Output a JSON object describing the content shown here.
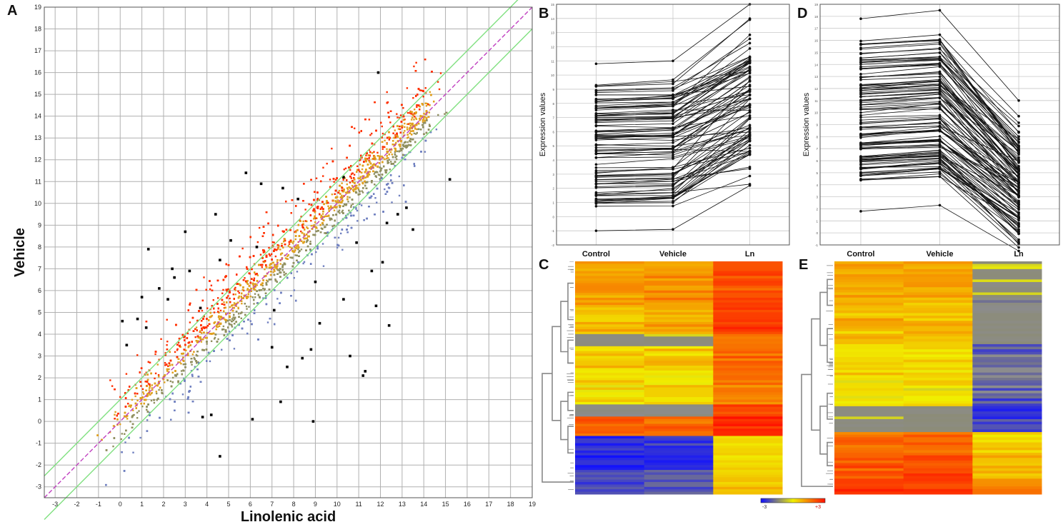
{
  "panels": {
    "a": "A",
    "b": "B",
    "c": "C",
    "d": "D",
    "e": "E"
  },
  "chart_data": [
    {
      "id": "A",
      "type": "scatter",
      "xlabel": "Linolenic acid",
      "ylabel": "Vehicle",
      "xlim": [
        -3.5,
        19
      ],
      "ylim": [
        -3.5,
        19
      ],
      "xticks": [
        -3,
        -2,
        -1,
        0,
        1,
        2,
        3,
        4,
        5,
        6,
        7,
        8,
        9,
        10,
        11,
        12,
        13,
        14,
        15,
        16,
        17,
        18,
        19
      ],
      "yticks": [
        -3,
        -2,
        -1,
        0,
        1,
        2,
        3,
        4,
        5,
        6,
        7,
        8,
        9,
        10,
        11,
        12,
        13,
        14,
        15,
        16,
        17,
        18,
        19
      ],
      "grid": true,
      "reference_lines": [
        {
          "name": "identity",
          "style": "dashed",
          "color": "#c040c0",
          "offset": 0
        },
        {
          "name": "fold-change upper",
          "color": "#80e080",
          "offset": 1
        },
        {
          "name": "fold-change lower",
          "color": "#80e080",
          "offset": -1
        }
      ],
      "series_colors": {
        "up": "#ff3000",
        "mid": "#e0a020",
        "neutral": "#909060",
        "down": "#7080c0",
        "outlier": "#000000"
      },
      "outliers": [
        [
          10.3,
          11.2
        ],
        [
          5.8,
          11.4
        ],
        [
          4.4,
          9.5
        ],
        [
          3.0,
          8.7
        ],
        [
          6.3,
          8.0
        ],
        [
          1.3,
          7.9
        ],
        [
          2.4,
          7.0
        ],
        [
          3.2,
          6.9
        ],
        [
          1.8,
          6.1
        ],
        [
          1.0,
          5.7
        ],
        [
          0.8,
          4.7
        ],
        [
          0.1,
          4.6
        ],
        [
          1.2,
          4.3
        ],
        [
          0.3,
          3.5
        ],
        [
          2.2,
          5.6
        ],
        [
          3.7,
          5.2
        ],
        [
          4.6,
          7.4
        ],
        [
          5.1,
          8.3
        ],
        [
          7.5,
          10.7
        ],
        [
          8.2,
          10.2
        ],
        [
          6.5,
          10.9
        ],
        [
          11.9,
          16.0
        ],
        [
          15.2,
          11.1
        ],
        [
          12.3,
          9.1
        ],
        [
          13.5,
          8.8
        ],
        [
          11.6,
          6.9
        ],
        [
          12.1,
          7.3
        ],
        [
          11.3,
          2.3
        ],
        [
          11.2,
          2.1
        ],
        [
          12.4,
          4.4
        ],
        [
          10.3,
          5.6
        ],
        [
          11.8,
          5.3
        ],
        [
          9.2,
          4.5
        ],
        [
          7.7,
          2.5
        ],
        [
          8.8,
          3.3
        ],
        [
          7.0,
          3.4
        ],
        [
          4.2,
          0.3
        ],
        [
          6.1,
          0.1
        ],
        [
          7.4,
          0.9
        ],
        [
          3.8,
          0.2
        ],
        [
          8.9,
          0.0
        ],
        [
          4.6,
          -1.6
        ],
        [
          8.4,
          2.9
        ],
        [
          10.6,
          3.0
        ],
        [
          9.0,
          6.4
        ],
        [
          7.1,
          5.1
        ],
        [
          13.2,
          9.8
        ],
        [
          10.9,
          8.2
        ],
        [
          12.8,
          9.5
        ],
        [
          2.5,
          6.6
        ]
      ]
    },
    {
      "id": "B",
      "type": "line",
      "ylabel": "Expression values",
      "categories": [
        "Control",
        "Vehicle",
        "Ln"
      ],
      "ylim": [
        -2,
        15
      ],
      "profile_count": 90,
      "trend": "up-regulated in Ln",
      "series_examples": [
        {
          "name": "top",
          "values": [
            10.8,
            11.0,
            15.0
          ]
        },
        {
          "name": "bottom",
          "values": [
            -1.0,
            -0.9,
            2.2
          ]
        }
      ]
    },
    {
      "id": "D",
      "type": "line",
      "ylabel": "Expression values",
      "categories": [
        "Control",
        "Vehicle",
        "Ln"
      ],
      "ylim": [
        -1,
        19
      ],
      "profile_count": 110,
      "trend": "down-regulated in Ln",
      "series_examples": [
        {
          "name": "top",
          "values": [
            17.8,
            18.5,
            11.0
          ]
        },
        {
          "name": "bottom",
          "values": [
            1.8,
            2.3,
            -1.5
          ]
        }
      ]
    },
    {
      "id": "C",
      "type": "heatmap",
      "columns": [
        "Control",
        "Vehicle",
        "Ln"
      ],
      "scale": {
        "min": -3,
        "max": 3,
        "colors": [
          "#1010ff",
          "#f0f000",
          "#ff1000"
        ]
      },
      "row_blocks": [
        {
          "rows": 18,
          "values": [
            1.2,
            1.2,
            2.2
          ]
        },
        {
          "rows": 12,
          "values": [
            0.8,
            0.8,
            2.5
          ]
        },
        {
          "rows": 5,
          "values": [
            -0.9,
            -0.8,
            1.4
          ]
        },
        {
          "rows": 14,
          "values": [
            0.4,
            0.5,
            1.8
          ]
        },
        {
          "rows": 10,
          "values": [
            0.2,
            0.3,
            1.6
          ]
        },
        {
          "rows": 5,
          "values": [
            -1.2,
            -1.1,
            2.3
          ]
        },
        {
          "rows": 8,
          "values": [
            1.9,
            1.9,
            2.7
          ]
        },
        {
          "rows": 14,
          "values": [
            -2.6,
            -2.5,
            0.3
          ]
        },
        {
          "rows": 10,
          "values": [
            -2.2,
            -2.1,
            0.6
          ]
        }
      ]
    },
    {
      "id": "E",
      "type": "heatmap",
      "columns": [
        "Control",
        "Vehicle",
        "Ln"
      ],
      "scale": {
        "min": -3,
        "max": 3,
        "colors": [
          "#1010ff",
          "#f0f000",
          "#ff1000"
        ]
      },
      "row_blocks": [
        {
          "rows": 14,
          "values": [
            1.0,
            1.0,
            -0.6
          ]
        },
        {
          "rows": 6,
          "values": [
            0.9,
            0.8,
            -1.4
          ]
        },
        {
          "rows": 12,
          "values": [
            0.7,
            0.7,
            -0.9
          ]
        },
        {
          "rows": 14,
          "values": [
            0.3,
            0.3,
            -1.8
          ]
        },
        {
          "rows": 10,
          "values": [
            0.2,
            0.2,
            -2.0
          ]
        },
        {
          "rows": 10,
          "values": [
            -0.6,
            -0.5,
            -2.5
          ]
        },
        {
          "rows": 8,
          "values": [
            1.7,
            1.8,
            0.4
          ]
        },
        {
          "rows": 10,
          "values": [
            2.2,
            2.3,
            0.8
          ]
        },
        {
          "rows": 6,
          "values": [
            2.6,
            2.5,
            1.3
          ]
        }
      ]
    }
  ],
  "legend": {
    "min_label": "-3",
    "max_label": "+3"
  }
}
